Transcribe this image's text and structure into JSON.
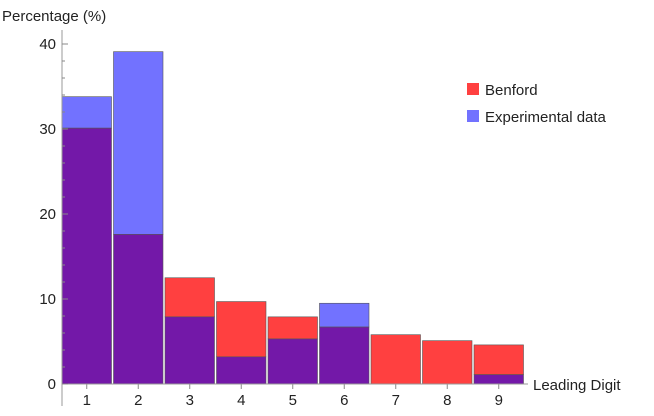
{
  "chart_data": {
    "type": "bar",
    "ylabel": "Percentage (%)",
    "xlabel": "Leading Digit",
    "categories": [
      "1",
      "2",
      "3",
      "4",
      "5",
      "6",
      "7",
      "8",
      "9"
    ],
    "series": [
      {
        "name": "Benford",
        "color": "#ff4040",
        "values": [
          30.1,
          17.6,
          12.5,
          9.7,
          7.9,
          6.7,
          5.8,
          5.1,
          4.6
        ]
      },
      {
        "name": "Experimental data",
        "color": "#7272ff",
        "values": [
          33.8,
          39.1,
          7.9,
          3.2,
          5.3,
          9.5,
          0,
          0,
          1.1
        ]
      }
    ],
    "overlap_color": "#7318a8",
    "ylim": [
      0,
      40
    ],
    "yticks": [
      0,
      10,
      20,
      30,
      40
    ],
    "legend_position": "top-right",
    "grid": false
  }
}
